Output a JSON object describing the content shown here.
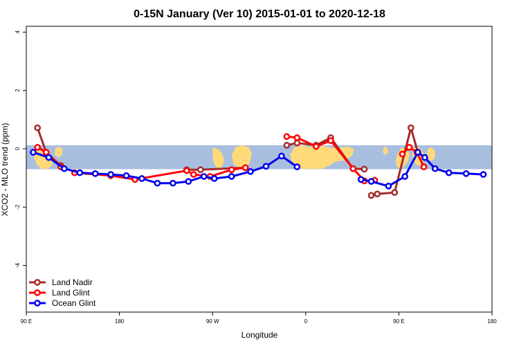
{
  "chart_data": {
    "type": "line",
    "title": "0-15N January (Ver 10)   2015-01-01 to 2020-12-18",
    "xlabel": "Longitude",
    "ylabel": "XCO2 - MLO trend (ppm)",
    "xlim": [
      -90,
      180
    ],
    "ylim": [
      -5.6,
      4.2
    ],
    "xticks": [
      {
        "value": -90,
        "label": "90 E"
      },
      {
        "value": -36,
        "label": "180"
      },
      {
        "value": 18,
        "label": "90 W"
      },
      {
        "value": 72,
        "label": "0"
      },
      {
        "value": 126,
        "label": "90 E"
      },
      {
        "value": 180,
        "label": "180"
      }
    ],
    "yticks": [
      {
        "value": -4,
        "label": "-4"
      },
      {
        "value": -2,
        "label": "-2"
      },
      {
        "value": 0,
        "label": "0"
      },
      {
        "value": 2,
        "label": "2"
      },
      {
        "value": 4,
        "label": "4"
      }
    ],
    "grid": false,
    "legend_position": "bottom-left",
    "band": {
      "ymin": -0.7,
      "ymax": 0.12,
      "color": "#a8bedf"
    },
    "land_color": "#ffd97a",
    "series": [
      {
        "name": "Land Nadir",
        "color": "#a52a2a",
        "segments": [
          [
            [
              -83.5,
              0.72
            ],
            [
              -78.5,
              -0.12
            ],
            [
              -70,
              -0.58
            ]
          ],
          [
            [
              3,
              -0.72
            ],
            [
              11,
              -0.72
            ],
            [
              37,
              -0.65
            ]
          ],
          [
            [
              61,
              0.12
            ],
            [
              67,
              0.2
            ],
            [
              78,
              0.12
            ],
            [
              86.5,
              0.38
            ],
            [
              99.5,
              -0.68
            ],
            [
              106,
              -0.7
            ]
          ],
          [
            [
              110,
              -1.6
            ],
            [
              113.5,
              -1.55
            ],
            [
              123.5,
              -1.5
            ],
            [
              133,
              0.72
            ],
            [
              137,
              -0.12
            ]
          ]
        ]
      },
      {
        "name": "Land Glint",
        "color": "#ff0000",
        "segments": [
          [
            [
              -83.5,
              0.05
            ],
            [
              -78.5,
              -0.12
            ],
            [
              -70,
              -0.62
            ]
          ],
          [
            [
              -62,
              -0.82
            ],
            [
              -41,
              -0.92
            ],
            [
              -27,
              -1.05
            ],
            [
              3,
              -0.75
            ],
            [
              7,
              -0.88
            ],
            [
              16.5,
              -0.95
            ],
            [
              29,
              -0.72
            ],
            [
              37,
              -0.65
            ]
          ],
          [
            [
              61,
              0.42
            ],
            [
              67,
              0.38
            ],
            [
              78,
              0.08
            ],
            [
              86.5,
              0.28
            ],
            [
              99.5,
              -0.68
            ],
            [
              106,
              -1.1
            ],
            [
              112,
              -1.08
            ]
          ],
          [
            [
              128,
              -0.18
            ],
            [
              132,
              0.05
            ],
            [
              136.5,
              -0.12
            ],
            [
              140.5,
              -0.62
            ]
          ]
        ]
      },
      {
        "name": "Ocean Glint",
        "color": "#0000ee",
        "segments": [
          [
            [
              -86,
              -0.12
            ],
            [
              -77,
              -0.3
            ],
            [
              -68,
              -0.68
            ],
            [
              -59,
              -0.82
            ],
            [
              -50,
              -0.85
            ],
            [
              -41,
              -0.88
            ],
            [
              -32,
              -0.92
            ],
            [
              -23,
              -1.02
            ],
            [
              -14,
              -1.18
            ],
            [
              -5,
              -1.18
            ],
            [
              4,
              -1.12
            ],
            [
              13,
              -0.95
            ],
            [
              19,
              -1.02
            ],
            [
              29,
              -0.95
            ],
            [
              40,
              -0.78
            ],
            [
              49,
              -0.6
            ],
            [
              58,
              -0.25
            ],
            [
              67,
              -0.62
            ]
          ],
          [
            [
              104,
              -1.05
            ],
            [
              110,
              -1.12
            ],
            [
              120,
              -1.28
            ],
            [
              129.5,
              -0.95
            ],
            [
              137,
              -0.12
            ],
            [
              141,
              -0.3
            ],
            [
              147,
              -0.68
            ],
            [
              155,
              -0.82
            ],
            [
              165,
              -0.85
            ],
            [
              175,
              -0.88
            ]
          ]
        ]
      }
    ]
  }
}
